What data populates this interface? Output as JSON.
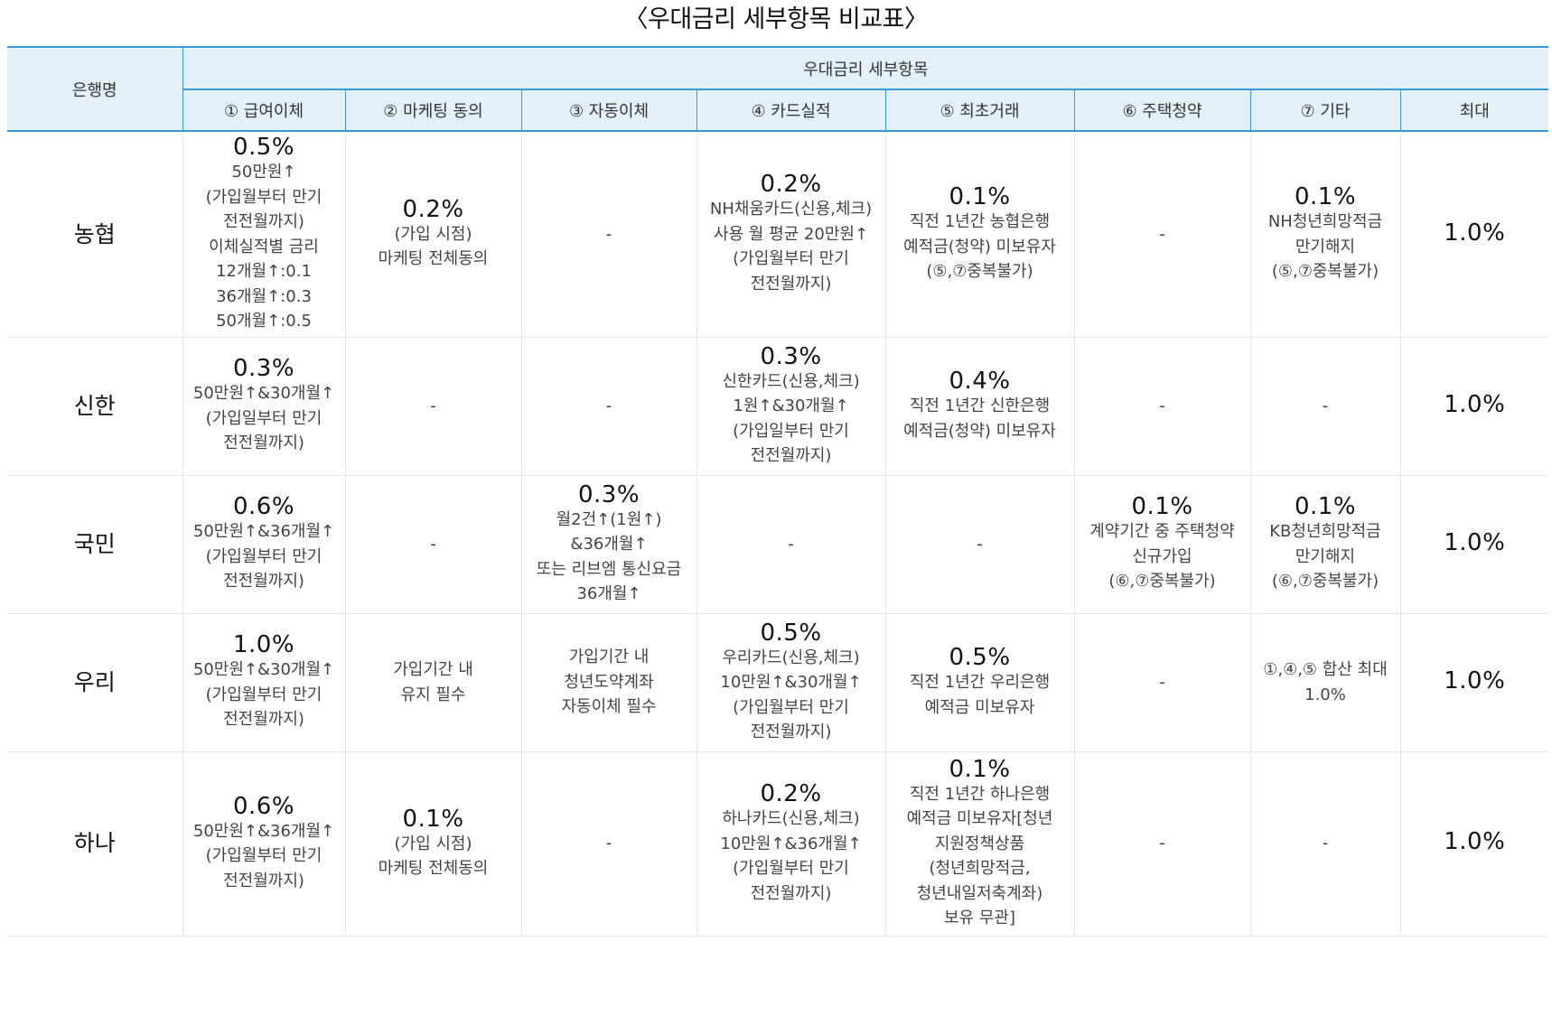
{
  "title": "〈우대금리 세부항목 비교표〉",
  "header": {
    "bank_col": "은행명",
    "group_label": "우대금리 세부항목",
    "columns": [
      "① 급여이체",
      "② 마케팅 동의",
      "③ 자동이체",
      "④ 카드실적",
      "⑤ 최초거래",
      "⑥ 주택청약",
      "⑦ 기타",
      "최대"
    ]
  },
  "rows": [
    {
      "bank": "농협",
      "cells": [
        {
          "rate": "0.5%",
          "lines": [
            "50만원↑",
            "(가입월부터 만기",
            "전전월까지)",
            "이체실적별 금리",
            "12개월↑:0.1",
            "36개월↑:0.3",
            "50개월↑:0.5"
          ]
        },
        {
          "rate": "0.2%",
          "lines": [
            "(가입 시점)",
            "마케팅 전체동의"
          ]
        },
        {
          "rate": "",
          "lines": [
            "-"
          ]
        },
        {
          "rate": "0.2%",
          "lines": [
            "NH채움카드(신용,체크)",
            "사용 월 평균 20만원↑",
            "(가입월부터 만기",
            "전전월까지)"
          ]
        },
        {
          "rate": "0.1%",
          "lines": [
            "직전 1년간 농협은행",
            "예적금(청약) 미보유자",
            "(⑤,⑦중복불가)"
          ]
        },
        {
          "rate": "",
          "lines": [
            "-"
          ]
        },
        {
          "rate": "0.1%",
          "lines": [
            "NH청년희망적금",
            "만기해지",
            "(⑤,⑦중복불가)"
          ]
        }
      ],
      "max": "1.0%"
    },
    {
      "bank": "신한",
      "cells": [
        {
          "rate": "0.3%",
          "lines": [
            "50만원↑&30개월↑",
            "(가입일부터 만기",
            "전전월까지)"
          ]
        },
        {
          "rate": "",
          "lines": [
            "-"
          ]
        },
        {
          "rate": "",
          "lines": [
            "-"
          ]
        },
        {
          "rate": "0.3%",
          "lines": [
            "신한카드(신용,체크)",
            "1원↑&30개월↑",
            "(가입일부터 만기",
            "전전월까지)"
          ]
        },
        {
          "rate": "0.4%",
          "lines": [
            "직전 1년간 신한은행",
            "예적금(청약) 미보유자"
          ]
        },
        {
          "rate": "",
          "lines": [
            "-"
          ]
        },
        {
          "rate": "",
          "lines": [
            "-"
          ]
        }
      ],
      "max": "1.0%"
    },
    {
      "bank": "국민",
      "cells": [
        {
          "rate": "0.6%",
          "lines": [
            "50만원↑&36개월↑",
            "(가입월부터 만기",
            "전전월까지)"
          ]
        },
        {
          "rate": "",
          "lines": [
            "-"
          ]
        },
        {
          "rate": "0.3%",
          "lines": [
            "월2건↑(1원↑)",
            "&36개월↑",
            "또는 리브엠 통신요금",
            "36개월↑"
          ]
        },
        {
          "rate": "",
          "lines": [
            "-"
          ]
        },
        {
          "rate": "",
          "lines": [
            "-"
          ]
        },
        {
          "rate": "0.1%",
          "lines": [
            "계약기간 중 주택청약",
            "신규가입",
            "(⑥,⑦중복불가)"
          ]
        },
        {
          "rate": "0.1%",
          "lines": [
            "KB청년희망적금",
            "만기해지",
            "(⑥,⑦중복불가)"
          ]
        }
      ],
      "max": "1.0%"
    },
    {
      "bank": "우리",
      "cells": [
        {
          "rate": "1.0%",
          "lines": [
            "50만원↑&30개월↑",
            "(가입월부터 만기",
            "전전월까지)"
          ]
        },
        {
          "rate": "",
          "lines": [
            "가입기간 내",
            "유지 필수"
          ]
        },
        {
          "rate": "",
          "lines": [
            "가입기간 내",
            "청년도약계좌",
            "자동이체 필수"
          ]
        },
        {
          "rate": "0.5%",
          "lines": [
            "우리카드(신용,체크)",
            "10만원↑&30개월↑",
            "(가입월부터 만기",
            "전전월까지)"
          ]
        },
        {
          "rate": "0.5%",
          "lines": [
            "직전 1년간 우리은행",
            "예적금 미보유자"
          ]
        },
        {
          "rate": "",
          "lines": [
            "-"
          ]
        },
        {
          "rate": "",
          "lines": [
            "①,④,⑤ 합산 최대",
            "1.0%"
          ]
        }
      ],
      "max": "1.0%"
    },
    {
      "bank": "하나",
      "cells": [
        {
          "rate": "0.6%",
          "lines": [
            "50만원↑&36개월↑",
            "(가입월부터 만기",
            "전전월까지)"
          ]
        },
        {
          "rate": "0.1%",
          "lines": [
            "(가입 시점)",
            "마케팅 전체동의"
          ]
        },
        {
          "rate": "",
          "lines": [
            "-"
          ]
        },
        {
          "rate": "0.2%",
          "lines": [
            "하나카드(신용,체크)",
            "10만원↑&36개월↑",
            "(가입월부터 만기",
            "전전월까지)"
          ]
        },
        {
          "rate": "0.1%",
          "lines": [
            "직전 1년간 하나은행",
            "예적금 미보유자[청년",
            "지원정책상품",
            "(청년희망적금,",
            "청년내일저축계좌)",
            "보유 무관]"
          ]
        },
        {
          "rate": "",
          "lines": [
            "-"
          ]
        },
        {
          "rate": "",
          "lines": [
            "-"
          ]
        }
      ],
      "max": "1.0%"
    }
  ],
  "colors": {
    "header_bg": "#e3f0f8",
    "header_border": "#3a9ad9",
    "row_border": "#e6e6e6"
  }
}
